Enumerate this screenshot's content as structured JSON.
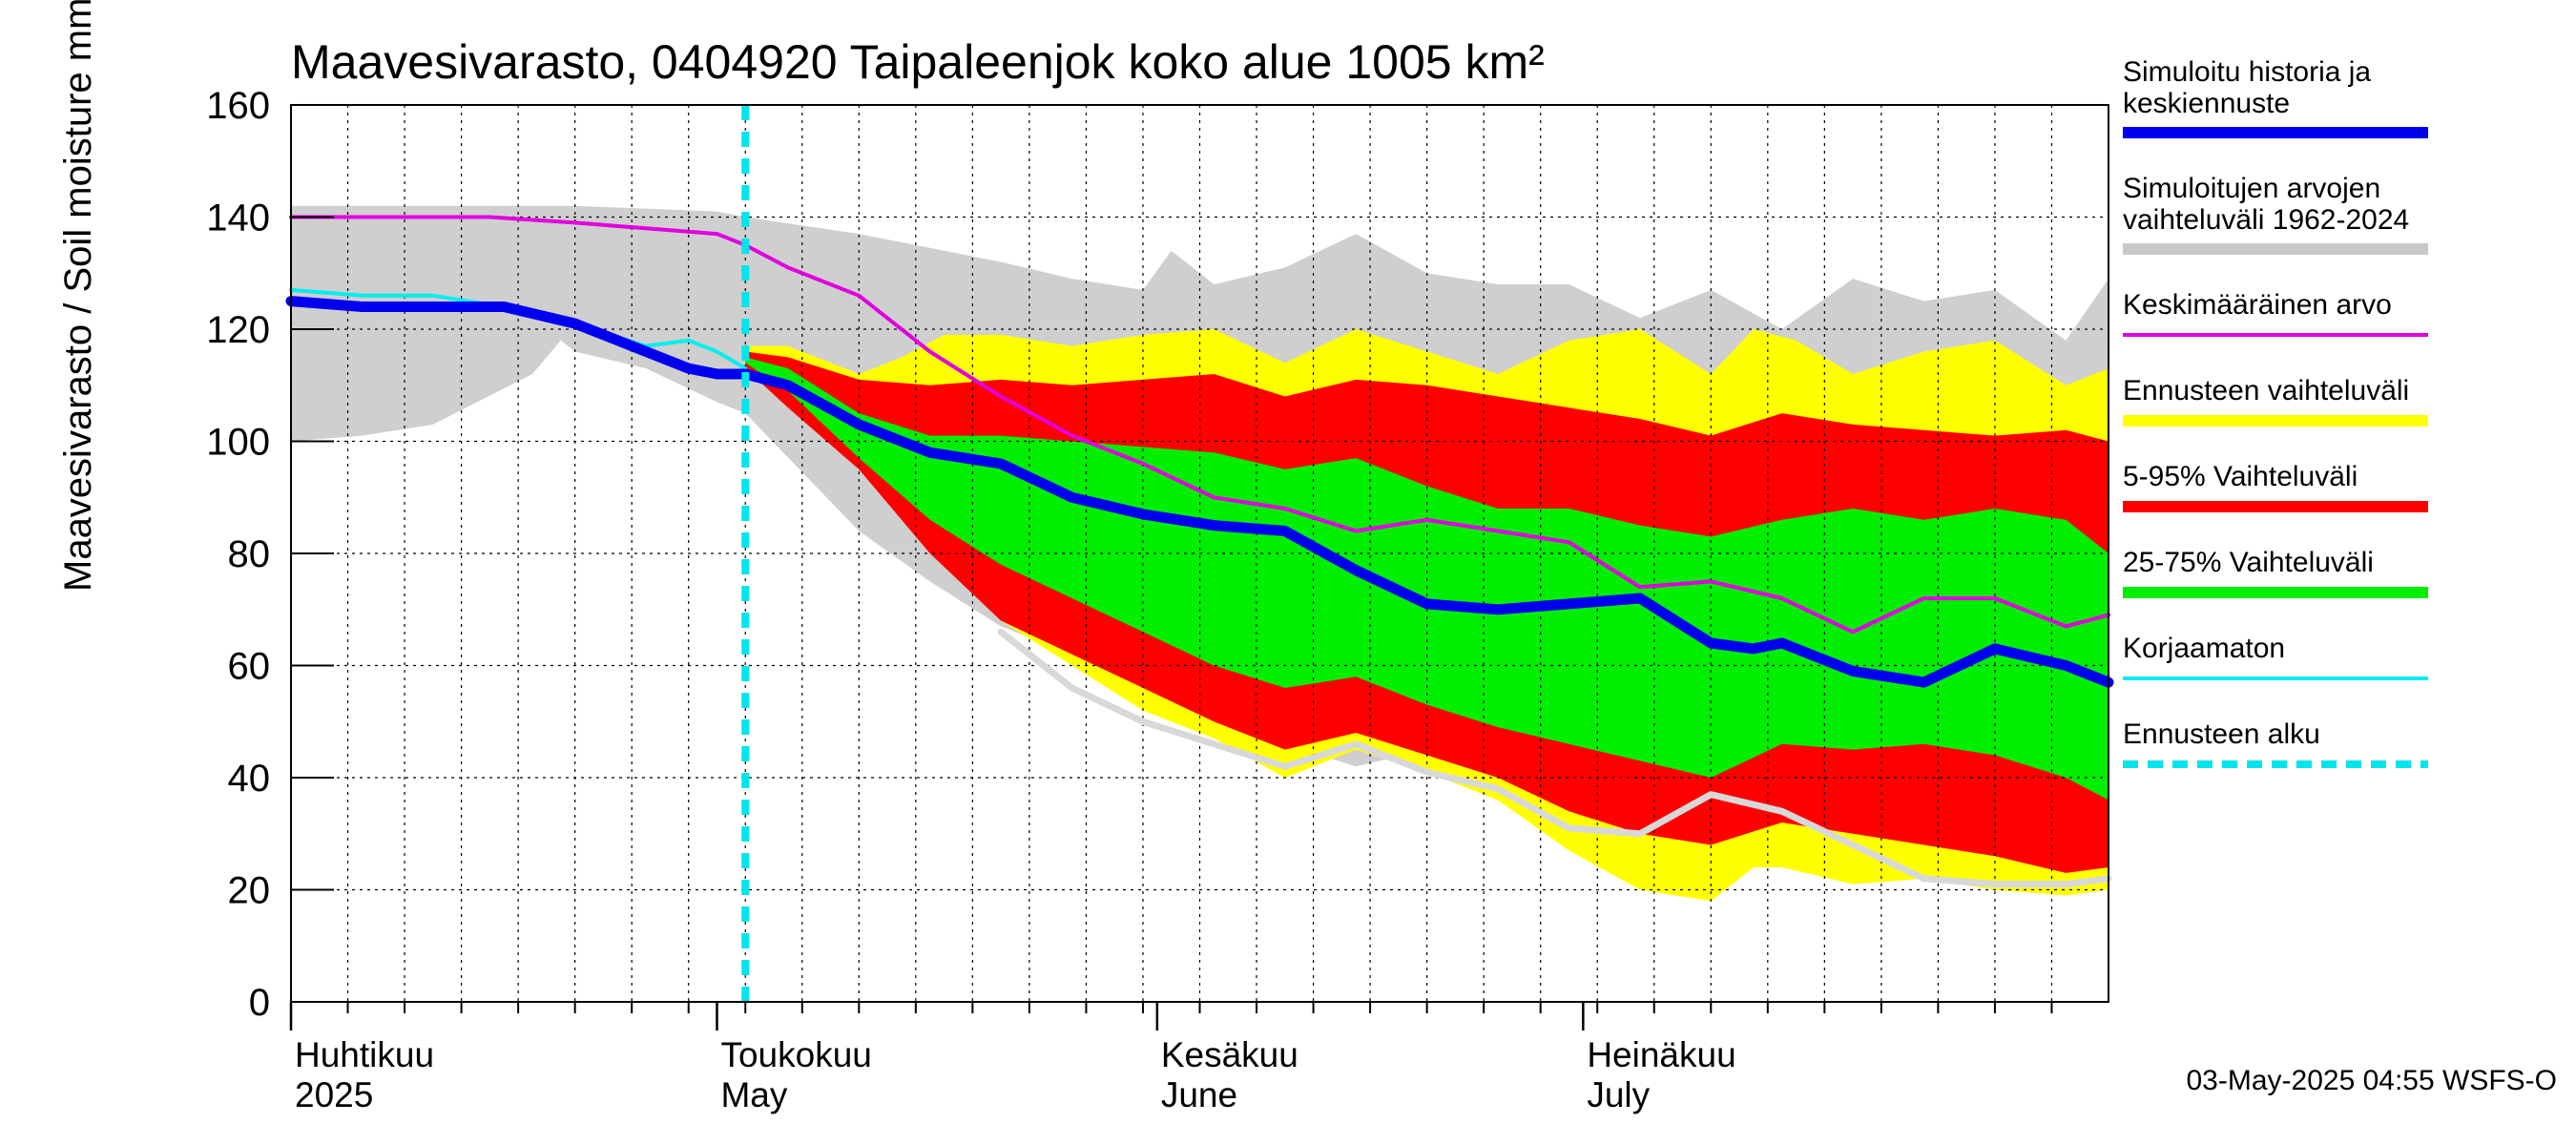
{
  "chart_data": {
    "type": "area",
    "title": "Maavesivarasto, 0404920 Taipaleenjok koko alue 1005 km²",
    "ylabel": "Maavesivarasto / Soil moisture   mm",
    "xlabel": "",
    "ylim": [
      0,
      160
    ],
    "yticks": [
      0,
      20,
      40,
      60,
      80,
      100,
      120,
      140,
      160
    ],
    "xlim_days": [
      0,
      128
    ],
    "forecast_start_day": 32,
    "month_labels": [
      {
        "fi": "Huhtikuu",
        "en": "2025",
        "day": 0
      },
      {
        "fi": "Toukokuu",
        "en": "May",
        "day": 30
      },
      {
        "fi": "Kesäkuu",
        "en": "June",
        "day": 61
      },
      {
        "fi": "Heinäkuu",
        "en": "July",
        "day": 91
      }
    ],
    "legend": [
      {
        "label": "Simuloitu historia ja",
        "label2": "keskiennuste",
        "color": "#0000ee",
        "kind": "thick"
      },
      {
        "label": "Simuloitujen arvojen",
        "label2": "vaihteluväli 1962-2024",
        "color": "#c8c8c8",
        "kind": "thick"
      },
      {
        "label": "Keskimääräinen arvo",
        "label2": "",
        "color": "#e000e0",
        "kind": "thin"
      },
      {
        "label": "Ennusteen vaihteluväli",
        "label2": "",
        "color": "#ffff00",
        "kind": "thick"
      },
      {
        "label": "5-95% Vaihteluväli",
        "label2": "",
        "color": "#ff0000",
        "kind": "thick"
      },
      {
        "label": "25-75% Vaihteluväli",
        "label2": "",
        "color": "#00ee00",
        "kind": "thick"
      },
      {
        "label": "Korjaamaton",
        "label2": "",
        "color": "#00eeee",
        "kind": "thin"
      },
      {
        "label": "Ennusteen alku",
        "label2": "",
        "color": "#00e5ee",
        "kind": "dashed"
      }
    ],
    "series": [
      {
        "name": "hist_range_upper",
        "x": [
          0,
          10,
          20,
          30,
          32,
          40,
          50,
          55,
          60,
          62,
          65,
          70,
          75,
          80,
          85,
          90,
          95,
          100,
          105,
          110,
          115,
          120,
          125,
          128
        ],
        "values": [
          142,
          142,
          142,
          141,
          140,
          137,
          132,
          129,
          127,
          134,
          128,
          131,
          137,
          130,
          128,
          128,
          122,
          127,
          120,
          129,
          125,
          127,
          118,
          129
        ]
      },
      {
        "name": "hist_range_lower",
        "x": [
          0,
          5,
          10,
          17,
          19,
          20,
          25,
          30,
          32,
          40,
          45,
          50,
          55,
          60,
          65,
          70,
          75,
          80,
          85,
          90,
          95,
          100,
          105,
          110,
          115,
          120,
          125,
          128
        ],
        "values": [
          100,
          101,
          103,
          112,
          118,
          116,
          113,
          107,
          105,
          84,
          75,
          67,
          62,
          58,
          52,
          46,
          42,
          45,
          40,
          35,
          28,
          30,
          28,
          25,
          22,
          20,
          19,
          20
        ]
      },
      {
        "name": "ennuste_upper",
        "x": [
          32,
          35,
          40,
          43,
          46,
          50,
          55,
          60,
          65,
          70,
          75,
          80,
          85,
          90,
          95,
          100,
          103,
          106,
          110,
          115,
          120,
          125,
          128
        ],
        "values": [
          117,
          117,
          112,
          115,
          119,
          119,
          117,
          119,
          120,
          114,
          120,
          116,
          112,
          118,
          120,
          112,
          120,
          118,
          112,
          116,
          118,
          110,
          113
        ]
      },
      {
        "name": "ennuste_lower",
        "x": [
          32,
          35,
          40,
          45,
          50,
          55,
          60,
          65,
          70,
          75,
          80,
          85,
          90,
          95,
          100,
          103,
          105,
          110,
          115,
          120,
          125,
          128
        ],
        "values": [
          114,
          108,
          97,
          83,
          68,
          60,
          52,
          47,
          40,
          45,
          41,
          36,
          27,
          20,
          18,
          24,
          24,
          21,
          22,
          20,
          19,
          20
        ]
      },
      {
        "name": "p95",
        "x": [
          32,
          35,
          40,
          45,
          50,
          55,
          60,
          65,
          70,
          75,
          80,
          85,
          90,
          95,
          100,
          105,
          110,
          115,
          120,
          125,
          128
        ],
        "values": [
          116,
          115,
          111,
          110,
          111,
          110,
          111,
          112,
          108,
          111,
          110,
          108,
          106,
          104,
          101,
          105,
          103,
          102,
          101,
          102,
          100
        ]
      },
      {
        "name": "p05",
        "x": [
          32,
          35,
          40,
          45,
          50,
          55,
          60,
          65,
          70,
          75,
          80,
          85,
          90,
          95,
          100,
          105,
          110,
          115,
          120,
          125,
          128
        ],
        "values": [
          113,
          106,
          95,
          80,
          68,
          62,
          56,
          50,
          45,
          48,
          44,
          40,
          34,
          30,
          28,
          32,
          30,
          28,
          26,
          23,
          24
        ]
      },
      {
        "name": "p75",
        "x": [
          32,
          35,
          40,
          45,
          50,
          55,
          60,
          65,
          70,
          75,
          80,
          85,
          90,
          95,
          100,
          105,
          110,
          115,
          120,
          125,
          128
        ],
        "values": [
          115,
          113,
          105,
          101,
          101,
          100,
          99,
          98,
          95,
          97,
          92,
          88,
          88,
          85,
          83,
          86,
          88,
          86,
          88,
          86,
          80
        ]
      },
      {
        "name": "p25",
        "x": [
          32,
          35,
          40,
          45,
          50,
          55,
          60,
          65,
          70,
          75,
          80,
          85,
          90,
          95,
          100,
          105,
          110,
          115,
          120,
          125,
          128
        ],
        "values": [
          114,
          109,
          97,
          86,
          78,
          72,
          66,
          60,
          56,
          58,
          53,
          49,
          46,
          43,
          40,
          46,
          45,
          46,
          44,
          40,
          36
        ]
      },
      {
        "name": "Keskimääräinen arvo",
        "x": [
          0,
          10,
          14,
          20,
          25,
          30,
          32,
          35,
          40,
          45,
          50,
          55,
          60,
          65,
          70,
          75,
          80,
          85,
          90,
          95,
          100,
          105,
          110,
          115,
          120,
          125,
          128
        ],
        "values": [
          140,
          140,
          140,
          139,
          138,
          137,
          135,
          131,
          126,
          116,
          108,
          101,
          96,
          90,
          88,
          84,
          86,
          84,
          82,
          74,
          75,
          72,
          66,
          72,
          72,
          67,
          69
        ]
      },
      {
        "name": "Korjaamaton",
        "x": [
          0,
          5,
          10,
          15,
          20,
          25,
          28,
          30,
          32
        ],
        "values": [
          127,
          126,
          126,
          124,
          121,
          117,
          118,
          116,
          113
        ]
      },
      {
        "name": "Simuloitu historia ja keskiennuste",
        "x": [
          0,
          5,
          10,
          15,
          20,
          25,
          28,
          30,
          32,
          35,
          40,
          45,
          50,
          55,
          60,
          65,
          70,
          75,
          80,
          85,
          90,
          95,
          100,
          103,
          105,
          110,
          115,
          120,
          125,
          128
        ],
        "values": [
          125,
          124,
          124,
          124,
          121,
          116,
          113,
          112,
          112,
          110,
          103,
          98,
          96,
          90,
          87,
          85,
          84,
          77,
          71,
          70,
          71,
          72,
          64,
          63,
          64,
          59,
          57,
          63,
          60,
          57
        ]
      },
      {
        "name": "sim_history_min",
        "x": [
          50,
          55,
          60,
          65,
          70,
          75,
          80,
          85,
          90,
          95,
          100,
          105,
          110,
          115,
          120,
          125,
          128
        ],
        "values": [
          66,
          56,
          50,
          46,
          42,
          46,
          41,
          38,
          31,
          30,
          37,
          34,
          28,
          22,
          21,
          21,
          22
        ]
      }
    ]
  },
  "footer": {
    "timestamp": "03-May-2025 04:55 WSFS-O"
  }
}
